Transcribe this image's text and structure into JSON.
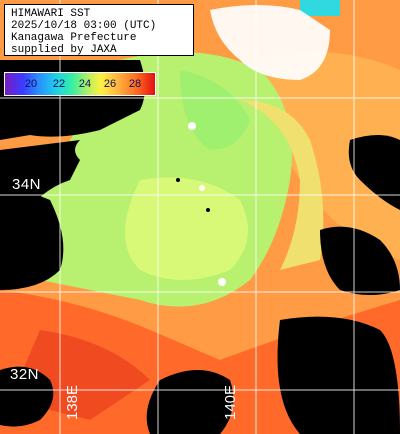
{
  "info": {
    "line1": "HIMAWARI SST",
    "line2": "2025/10/18 03:00 (UTC)",
    "line3": "Kanagawa Prefecture",
    "line4": "supplied by JAXA"
  },
  "colorbar": {
    "ticks": [
      "20",
      "22",
      "24",
      "26",
      "28"
    ]
  },
  "graticule": {
    "lat_labels": [
      "34N",
      "32N"
    ],
    "lon_labels": [
      "138E",
      "140E"
    ]
  },
  "colors": {
    "land": "#000000",
    "cool_water": "#b8f070",
    "warm_water": "#ff8a3a",
    "hot_water": "#e83a20",
    "cold_spot": "#30d8e0",
    "grid": "#ffffff"
  }
}
